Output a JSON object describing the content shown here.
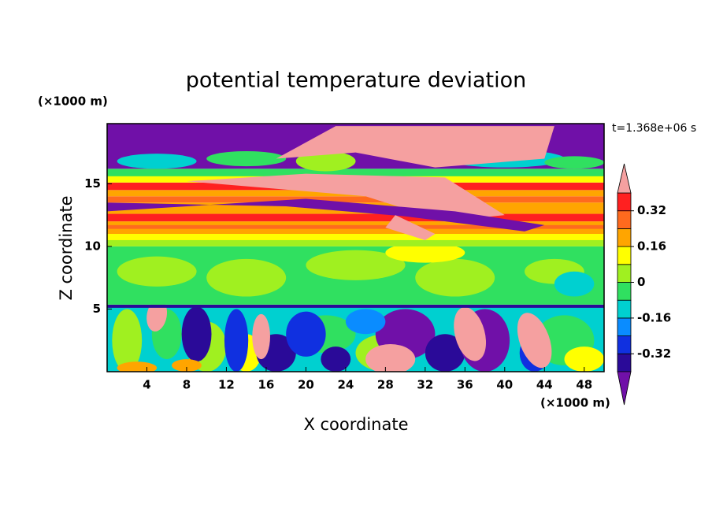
{
  "chart_data": {
    "type": "contour",
    "title": "potential temperature deviation",
    "x_label": "X coordinate",
    "y_label": "Z coordinate",
    "x_unit": "(×1000 m)",
    "y_unit": "(×1000 m)",
    "annotation": "t=1.368e+06 s",
    "xlim": [
      0,
      50
    ],
    "xticks": [
      4,
      8,
      12,
      16,
      20,
      24,
      28,
      32,
      36,
      40,
      44,
      48
    ],
    "ylim": [
      0,
      19.8
    ],
    "yticks": [
      5,
      10,
      15
    ],
    "clim": [
      -0.4,
      0.4
    ],
    "cticks": [
      -0.32,
      -0.16,
      0,
      0.16,
      0.32
    ],
    "colors": [
      "#7010a8",
      "#2a0a98",
      "#1030e0",
      "#0a8cff",
      "#00d0d0",
      "#30e060",
      "#a0f020",
      "#ffff00",
      "#ffa500",
      "#ff6a1e",
      "#ff2020",
      "#f5a0a0"
    ]
  }
}
